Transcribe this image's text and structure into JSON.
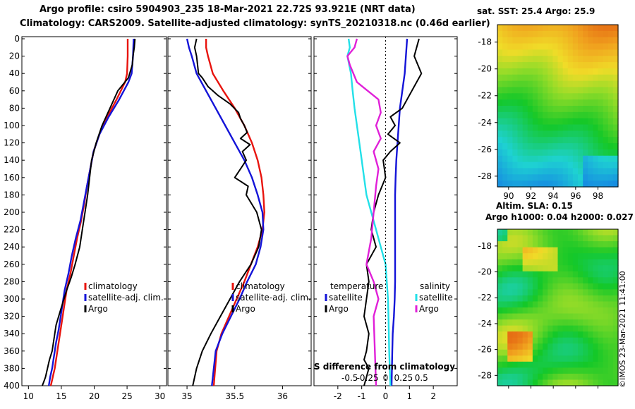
{
  "title_line1": "Argo profile: csiro 5904903_235 18-Mar-2021 22.72S 93.921E (NRT data)",
  "title_line2": "Climatology: CARS2009. Satellite-adjusted climatology: synTS_20210318.nc (0.46d earlier)",
  "sst_title": "sat. SST: 25.4 Argo: 25.9",
  "sla_title1": "Altim. SLA: 0.15",
  "sla_title2": "Argo h1000: 0.04 h2000: 0.027",
  "credit": "©IMOS 23-Mar-2021 11:41:00",
  "colors": {
    "climatology": "#e8140e",
    "satellite": "#1414d8",
    "argo": "#000000",
    "sat_salinity": "#22e0e8",
    "argo_salinity": "#e020d8"
  },
  "legend": {
    "climatology": "climatology",
    "satellite_adj": "satellite-adj. clim.",
    "argo": "Argo",
    "temperature": "temperature",
    "salinity": "salinity",
    "satellite": "satellite"
  },
  "chart_data": [
    {
      "type": "line",
      "title": "Temperature profile",
      "ylabel": "Depth",
      "xlim": [
        9,
        31
      ],
      "ylim": [
        400,
        0
      ],
      "xticks": [
        10,
        15,
        20,
        25,
        30
      ],
      "yticks": [
        0,
        20,
        40,
        60,
        80,
        100,
        120,
        140,
        160,
        180,
        200,
        220,
        240,
        260,
        280,
        300,
        320,
        340,
        360,
        380,
        400
      ],
      "series": [
        {
          "name": "climatology",
          "color_key": "climatology",
          "x": [
            25.1,
            25.1,
            25.0,
            24.7,
            23.4,
            22.0,
            20.8,
            19.9,
            19.4,
            18.9,
            18.5,
            18.0,
            17.4,
            16.9,
            16.4,
            15.8,
            15.5,
            15.2,
            14.9,
            14.6,
            14.3,
            14.0,
            13.7,
            13.4
          ],
          "depth": [
            0,
            20,
            40,
            50,
            70,
            90,
            110,
            130,
            150,
            170,
            190,
            210,
            230,
            250,
            270,
            290,
            305,
            320,
            335,
            350,
            365,
            380,
            390,
            400
          ]
        },
        {
          "name": "satellite-adj. clim.",
          "color_key": "satellite",
          "x": [
            26.0,
            25.9,
            25.7,
            25.2,
            23.8,
            22.2,
            20.8,
            19.9,
            19.4,
            18.9,
            18.4,
            17.9,
            17.2,
            16.6,
            16.1,
            15.5,
            15.2,
            14.9,
            14.6,
            14.2,
            13.9,
            13.6,
            13.3,
            13.1
          ],
          "depth": [
            0,
            20,
            40,
            50,
            70,
            90,
            110,
            130,
            150,
            170,
            190,
            210,
            230,
            250,
            270,
            290,
            305,
            320,
            335,
            350,
            365,
            380,
            390,
            400
          ]
        },
        {
          "name": "Argo",
          "color_key": "argo",
          "x": [
            26.2,
            26.1,
            25.9,
            25.8,
            25.2,
            23.6,
            22.4,
            21.2,
            20.3,
            19.6,
            19.3,
            19.0,
            18.6,
            18.2,
            17.8,
            17.1,
            16.5,
            15.8,
            15.2,
            14.8,
            14.2,
            13.9,
            13.6,
            13.2,
            12.9,
            12.6,
            12.3,
            12.1
          ],
          "depth": [
            0,
            10,
            20,
            30,
            45,
            60,
            80,
            100,
            120,
            140,
            160,
            180,
            200,
            220,
            240,
            260,
            275,
            290,
            305,
            315,
            330,
            345,
            360,
            370,
            380,
            390,
            396,
            400
          ]
        }
      ]
    },
    {
      "type": "line",
      "title": "Salinity profile",
      "ylabel": "Depth",
      "xlim": [
        34.8,
        36.3
      ],
      "ylim": [
        400,
        0
      ],
      "xticks": [
        35,
        35.5,
        36
      ],
      "xticklabels": [
        "35",
        "35.5",
        "36"
      ],
      "yticks": [
        0,
        20,
        40,
        60,
        80,
        100,
        120,
        140,
        160,
        180,
        200,
        220,
        240,
        260,
        280,
        300,
        320,
        340,
        360,
        380,
        400
      ],
      "series": [
        {
          "name": "climatology",
          "color_key": "climatology",
          "x": [
            35.2,
            35.2,
            35.22,
            35.27,
            35.38,
            35.5,
            35.6,
            35.68,
            35.74,
            35.78,
            35.8,
            35.81,
            35.79,
            35.74,
            35.67,
            35.6,
            35.52,
            35.44,
            35.36,
            35.31,
            35.28
          ],
          "depth": [
            0,
            10,
            20,
            40,
            60,
            80,
            100,
            120,
            140,
            160,
            180,
            200,
            220,
            240,
            260,
            280,
            300,
            320,
            340,
            360,
            400
          ]
        },
        {
          "name": "satellite-adj. clim.",
          "color_key": "satellite",
          "x": [
            35.0,
            35.02,
            35.05,
            35.1,
            35.2,
            35.3,
            35.4,
            35.5,
            35.6,
            35.68,
            35.74,
            35.79,
            35.8,
            35.77,
            35.72,
            35.63,
            35.55,
            35.46,
            35.37,
            35.3,
            35.26
          ],
          "depth": [
            0,
            10,
            20,
            40,
            60,
            80,
            100,
            120,
            140,
            160,
            180,
            200,
            220,
            240,
            260,
            280,
            300,
            320,
            340,
            360,
            400
          ]
        },
        {
          "name": "Argo",
          "color_key": "argo",
          "x": [
            35.1,
            35.08,
            35.1,
            35.11,
            35.12,
            35.16,
            35.22,
            35.32,
            35.45,
            35.54,
            35.56,
            35.6,
            35.63,
            35.56,
            35.66,
            35.58,
            35.62,
            35.56,
            35.5,
            35.64,
            35.62,
            35.73,
            35.78,
            35.75,
            35.67,
            35.55,
            35.45,
            35.35,
            35.25,
            35.16,
            35.1,
            35.06
          ],
          "depth": [
            0,
            10,
            20,
            30,
            40,
            45,
            55,
            65,
            75,
            85,
            92,
            100,
            108,
            115,
            122,
            130,
            140,
            150,
            160,
            170,
            180,
            200,
            220,
            240,
            260,
            280,
            300,
            320,
            340,
            360,
            380,
            400
          ]
        }
      ]
    },
    {
      "type": "line",
      "title": "Difference from climatology",
      "xlabel": "S difference from climatology",
      "xlim": [
        -3,
        3
      ],
      "ylim": [
        400,
        0
      ],
      "xticks": [
        -2,
        -1,
        0,
        1,
        2
      ],
      "xticklabels": [
        "-2",
        "-1",
        "0",
        "1",
        "2"
      ],
      "secondary_xticklabels": [
        "-0.5",
        "-0.25",
        "0",
        "0.25",
        "0.5"
      ],
      "yticks": [
        0,
        20,
        40,
        60,
        80,
        100,
        120,
        140,
        160,
        180,
        200,
        220,
        240,
        260,
        280,
        300,
        320,
        340,
        360,
        380,
        400
      ],
      "series": [
        {
          "name": "temperature satellite",
          "color_key": "satellite",
          "x": [
            0.9,
            0.85,
            0.8,
            0.7,
            0.6,
            0.55,
            0.5,
            0.45,
            0.42,
            0.4,
            0.4,
            0.4,
            0.4,
            0.4,
            0.4,
            0.38,
            0.35,
            0.3,
            0.28,
            0.25
          ],
          "depth": [
            0,
            20,
            40,
            60,
            80,
            100,
            120,
            140,
            160,
            180,
            200,
            220,
            240,
            260,
            280,
            300,
            320,
            340,
            360,
            400
          ]
        },
        {
          "name": "temperature Argo",
          "color_key": "argo",
          "x": [
            1.4,
            1.3,
            1.2,
            1.5,
            1.1,
            0.7,
            0.2,
            0.4,
            0.1,
            0.6,
            0.2,
            -0.1,
            0.0,
            -0.3,
            -0.5,
            -0.6,
            -0.4,
            -0.8,
            -0.7,
            -0.8,
            -0.9,
            -0.7,
            -0.8,
            -0.9,
            -0.7,
            -0.8,
            -0.9
          ],
          "depth": [
            0,
            10,
            20,
            40,
            60,
            80,
            90,
            100,
            110,
            120,
            130,
            140,
            160,
            180,
            200,
            220,
            240,
            260,
            280,
            300,
            320,
            340,
            360,
            370,
            380,
            390,
            400
          ]
        },
        {
          "name": "salinity satellite",
          "color_key": "sat_salinity",
          "x": [
            -1.55,
            -1.5,
            -1.6,
            -1.45,
            -1.38,
            -1.3,
            -1.2,
            -1.1,
            -1.0,
            -0.9,
            -0.8,
            -0.6,
            -0.4,
            -0.2,
            0.0,
            0.05,
            0.1,
            0.12,
            0.15,
            0.2
          ],
          "depth": [
            0,
            10,
            20,
            40,
            60,
            80,
            100,
            120,
            140,
            160,
            180,
            200,
            220,
            240,
            260,
            280,
            300,
            320,
            360,
            400
          ]
        },
        {
          "name": "salinity Argo",
          "color_key": "argo_salinity",
          "x": [
            -1.2,
            -1.3,
            -1.6,
            -1.5,
            -1.2,
            -0.3,
            -0.2,
            -0.4,
            -0.2,
            -0.5,
            -0.3,
            -0.4,
            -0.5,
            -0.6,
            -0.8,
            -0.5,
            -0.3,
            -0.5,
            -0.45,
            -0.4
          ],
          "depth": [
            0,
            10,
            20,
            30,
            50,
            70,
            85,
            100,
            115,
            130,
            150,
            170,
            200,
            230,
            260,
            280,
            300,
            320,
            360,
            400
          ]
        }
      ]
    },
    {
      "type": "heatmap",
      "title": "sat. SST: 25.4 Argo: 25.9",
      "xlim": [
        89,
        99.8
      ],
      "ylim": [
        -28.8,
        -16.7
      ],
      "xticks": [
        90,
        92,
        94,
        96,
        98
      ],
      "yticks": [
        -18,
        -20,
        -22,
        -24,
        -26,
        -28
      ]
    },
    {
      "type": "heatmap",
      "title": "Altim. SLA: 0.15",
      "xlim": [
        89,
        99.8
      ],
      "ylim": [
        -28.8,
        -16.7
      ],
      "yticks": [
        -18,
        -20,
        -22,
        -24,
        -26,
        -28
      ]
    }
  ]
}
